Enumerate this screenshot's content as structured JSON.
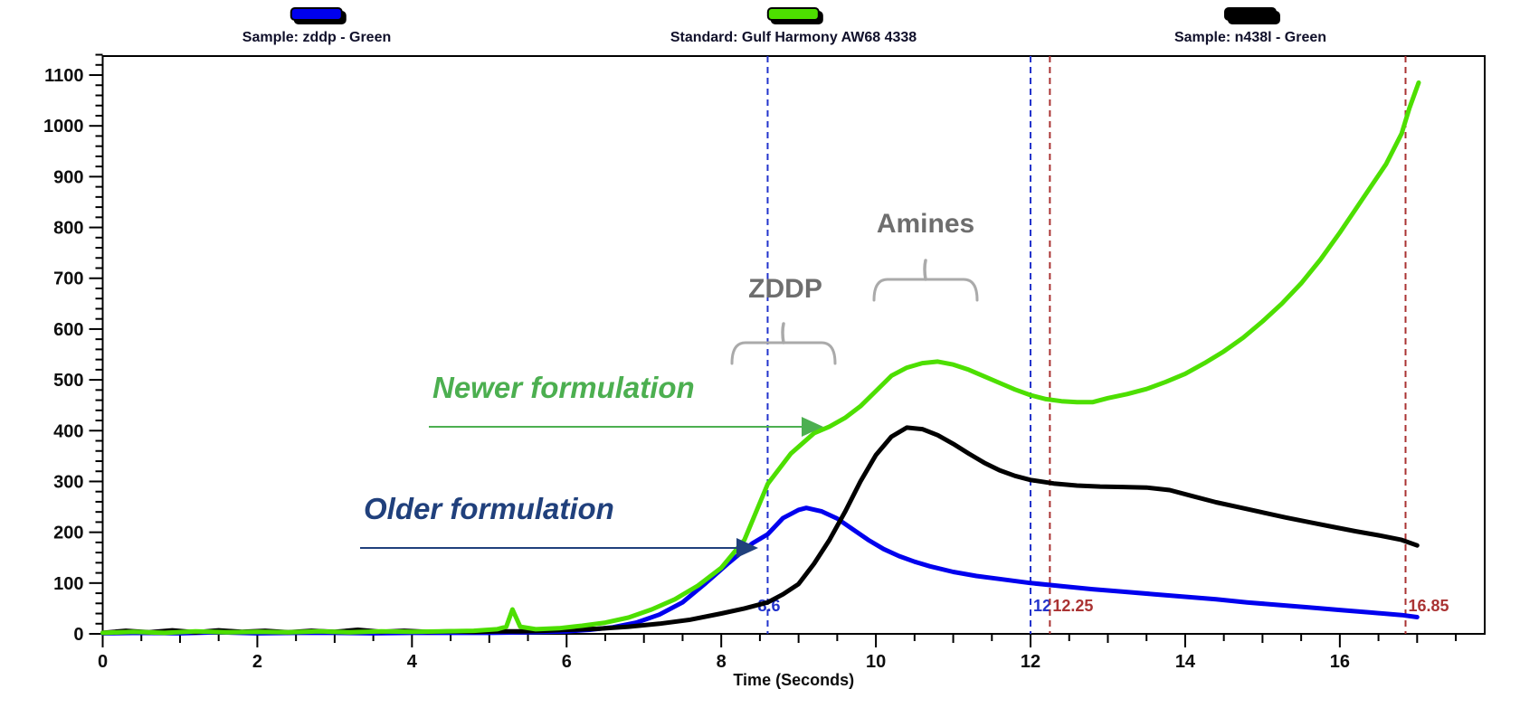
{
  "legend": {
    "items": [
      {
        "label": "Sample: zddp - Green"
      },
      {
        "label": "Standard: Gulf Harmony AW68 4338"
      },
      {
        "label": "Sample: n438l - Green"
      }
    ]
  },
  "chart_data": {
    "type": "line",
    "title": "",
    "xlabel": "Time (Seconds)",
    "ylabel": "",
    "xlim": [
      0,
      17.9
    ],
    "ylim": [
      0,
      1140
    ],
    "grid": false,
    "legend_position": "top",
    "x_ticks": [
      0,
      2,
      4,
      6,
      8,
      10,
      12,
      14,
      16
    ],
    "y_ticks": [
      0,
      100,
      200,
      300,
      400,
      500,
      600,
      700,
      800,
      900,
      1000,
      1100
    ],
    "series": [
      {
        "name": "Sample: zddp - Green",
        "color": "#0000ee",
        "points": [
          [
            0,
            1
          ],
          [
            0.5,
            2
          ],
          [
            1,
            1
          ],
          [
            1.5,
            3
          ],
          [
            2,
            1
          ],
          [
            2.5,
            2
          ],
          [
            3,
            2
          ],
          [
            3.5,
            1
          ],
          [
            4,
            2
          ],
          [
            4.5,
            2
          ],
          [
            5,
            2
          ],
          [
            5.5,
            3
          ],
          [
            6,
            5
          ],
          [
            6.3,
            8
          ],
          [
            6.6,
            13
          ],
          [
            6.9,
            22
          ],
          [
            7.2,
            38
          ],
          [
            7.5,
            62
          ],
          [
            7.8,
            100
          ],
          [
            8.1,
            140
          ],
          [
            8.4,
            178
          ],
          [
            8.6,
            196
          ],
          [
            8.8,
            228
          ],
          [
            9,
            244
          ],
          [
            9.1,
            248
          ],
          [
            9.3,
            241
          ],
          [
            9.5,
            227
          ],
          [
            9.7,
            206
          ],
          [
            9.9,
            185
          ],
          [
            10.1,
            167
          ],
          [
            10.3,
            153
          ],
          [
            10.5,
            142
          ],
          [
            10.7,
            133
          ],
          [
            11,
            122
          ],
          [
            11.3,
            114
          ],
          [
            11.6,
            108
          ],
          [
            12,
            100
          ],
          [
            12.4,
            94
          ],
          [
            12.8,
            88
          ],
          [
            13.2,
            83
          ],
          [
            13.6,
            78
          ],
          [
            14,
            73
          ],
          [
            14.4,
            68
          ],
          [
            14.8,
            62
          ],
          [
            15.2,
            57
          ],
          [
            15.6,
            52
          ],
          [
            16,
            47
          ],
          [
            16.4,
            42
          ],
          [
            16.8,
            37
          ],
          [
            17,
            33
          ]
        ]
      },
      {
        "name": "Standard: Gulf Harmony AW68 4338",
        "color": "#4ddf00",
        "points": [
          [
            0,
            2
          ],
          [
            0.4,
            4
          ],
          [
            0.8,
            2
          ],
          [
            1.2,
            5
          ],
          [
            1.6,
            3
          ],
          [
            2,
            4
          ],
          [
            2.4,
            3
          ],
          [
            2.8,
            5
          ],
          [
            3.2,
            3
          ],
          [
            3.6,
            5
          ],
          [
            4,
            4
          ],
          [
            4.4,
            5
          ],
          [
            4.8,
            6
          ],
          [
            5.1,
            9
          ],
          [
            5.22,
            14
          ],
          [
            5.3,
            48
          ],
          [
            5.4,
            14
          ],
          [
            5.6,
            9
          ],
          [
            5.9,
            11
          ],
          [
            6.2,
            16
          ],
          [
            6.5,
            22
          ],
          [
            6.8,
            32
          ],
          [
            7.1,
            48
          ],
          [
            7.4,
            68
          ],
          [
            7.7,
            95
          ],
          [
            8,
            130
          ],
          [
            8.3,
            185
          ],
          [
            8.6,
            295
          ],
          [
            8.9,
            355
          ],
          [
            9.2,
            395
          ],
          [
            9.4,
            408
          ],
          [
            9.6,
            425
          ],
          [
            9.8,
            448
          ],
          [
            10,
            478
          ],
          [
            10.2,
            508
          ],
          [
            10.4,
            524
          ],
          [
            10.6,
            533
          ],
          [
            10.8,
            536
          ],
          [
            11,
            530
          ],
          [
            11.2,
            520
          ],
          [
            11.4,
            507
          ],
          [
            11.6,
            494
          ],
          [
            11.8,
            481
          ],
          [
            12,
            470
          ],
          [
            12.2,
            462
          ],
          [
            12.4,
            458
          ],
          [
            12.6,
            456
          ],
          [
            12.8,
            456
          ],
          [
            13,
            464
          ],
          [
            13.25,
            472
          ],
          [
            13.5,
            482
          ],
          [
            13.75,
            496
          ],
          [
            14,
            512
          ],
          [
            14.25,
            533
          ],
          [
            14.5,
            556
          ],
          [
            14.75,
            583
          ],
          [
            15,
            615
          ],
          [
            15.25,
            650
          ],
          [
            15.5,
            690
          ],
          [
            15.75,
            737
          ],
          [
            16,
            790
          ],
          [
            16.2,
            835
          ],
          [
            16.4,
            880
          ],
          [
            16.6,
            925
          ],
          [
            16.8,
            985
          ],
          [
            16.9,
            1035
          ],
          [
            17.02,
            1085
          ]
        ]
      },
      {
        "name": "Sample: n438l - Green",
        "color": "#000000",
        "points": [
          [
            0,
            2
          ],
          [
            0.3,
            6
          ],
          [
            0.6,
            3
          ],
          [
            0.9,
            7
          ],
          [
            1.2,
            3
          ],
          [
            1.5,
            7
          ],
          [
            1.8,
            4
          ],
          [
            2.1,
            6
          ],
          [
            2.4,
            3
          ],
          [
            2.7,
            6
          ],
          [
            3,
            4
          ],
          [
            3.3,
            8
          ],
          [
            3.6,
            4
          ],
          [
            3.9,
            6
          ],
          [
            4.2,
            4
          ],
          [
            4.5,
            5
          ],
          [
            4.8,
            4
          ],
          [
            5.1,
            5
          ],
          [
            5.4,
            5
          ],
          [
            5.7,
            6
          ],
          [
            6,
            8
          ],
          [
            6.4,
            10
          ],
          [
            6.8,
            14
          ],
          [
            7.2,
            20
          ],
          [
            7.6,
            28
          ],
          [
            8,
            40
          ],
          [
            8.3,
            50
          ],
          [
            8.6,
            62
          ],
          [
            8.8,
            78
          ],
          [
            9,
            98
          ],
          [
            9.2,
            138
          ],
          [
            9.4,
            185
          ],
          [
            9.6,
            240
          ],
          [
            9.8,
            300
          ],
          [
            10,
            352
          ],
          [
            10.2,
            388
          ],
          [
            10.4,
            406
          ],
          [
            10.6,
            403
          ],
          [
            10.8,
            391
          ],
          [
            11,
            374
          ],
          [
            11.2,
            355
          ],
          [
            11.4,
            337
          ],
          [
            11.6,
            322
          ],
          [
            11.8,
            311
          ],
          [
            12,
            303
          ],
          [
            12.3,
            296
          ],
          [
            12.6,
            292
          ],
          [
            12.9,
            290
          ],
          [
            13.2,
            289
          ],
          [
            13.5,
            288
          ],
          [
            13.8,
            283
          ],
          [
            14.1,
            271
          ],
          [
            14.4,
            259
          ],
          [
            14.7,
            249
          ],
          [
            15,
            239
          ],
          [
            15.3,
            229
          ],
          [
            15.6,
            220
          ],
          [
            15.9,
            211
          ],
          [
            16.2,
            202
          ],
          [
            16.5,
            194
          ],
          [
            16.8,
            185
          ],
          [
            17,
            174
          ]
        ]
      }
    ],
    "markers": [
      {
        "t": 8.6,
        "label": "8.6",
        "color": "#2233cc"
      },
      {
        "t": 12,
        "label": "12",
        "color": "#2233cc"
      },
      {
        "t": 12.25,
        "label": "12.25",
        "color": "#aa3333"
      },
      {
        "t": 16.85,
        "label": "16.85",
        "color": "#aa3333"
      }
    ],
    "annotations": {
      "zddp": {
        "text": "ZDDP",
        "color": "#6e6e6e"
      },
      "amines": {
        "text": "Amines",
        "color": "#6e6e6e"
      },
      "newer": {
        "text": "Newer formulation",
        "color": "#4caf50"
      },
      "older": {
        "text": "Older formulation",
        "color": "#20407c"
      }
    }
  }
}
